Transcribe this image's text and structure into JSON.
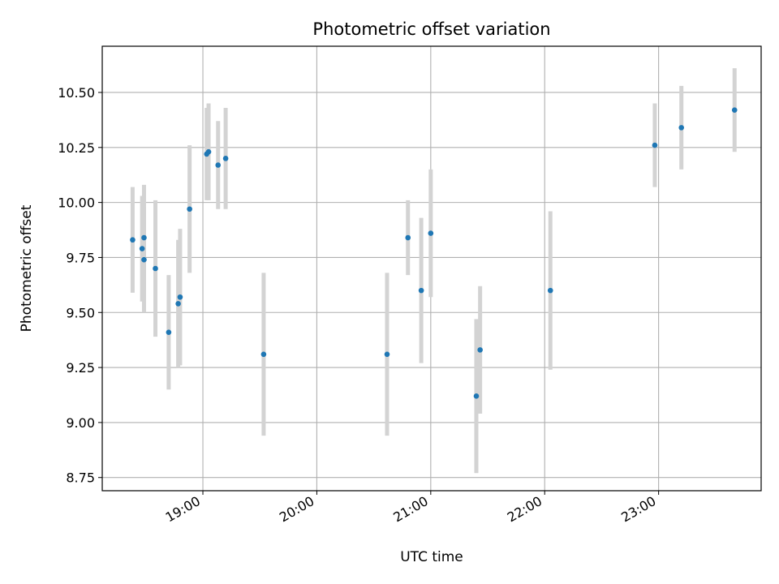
{
  "chart_data": {
    "type": "scatter",
    "title": "Photometric offset variation",
    "xlabel": "UTC time",
    "ylabel": "Photometric offset",
    "x_axis_type": "time",
    "xlim": [
      "18:07",
      "23:54"
    ],
    "ylim": [
      8.69,
      10.71
    ],
    "x_ticks": [
      "19:00",
      "20:00",
      "21:00",
      "22:00",
      "23:00"
    ],
    "y_ticks": [
      8.75,
      9.0,
      9.25,
      9.5,
      9.75,
      10.0,
      10.25,
      10.5
    ],
    "grid": true,
    "legend": "none",
    "point_color": "#1f77b4",
    "errorbar_color": "#d3d3d3",
    "points": [
      {
        "t": "18:23",
        "y": 9.83,
        "err": 0.24
      },
      {
        "t": "18:28",
        "y": 9.79,
        "err": 0.24
      },
      {
        "t": "18:29",
        "y": 9.74,
        "err": 0.24
      },
      {
        "t": "18:29",
        "y": 9.84,
        "err": 0.24
      },
      {
        "t": "18:35",
        "y": 9.7,
        "err": 0.31
      },
      {
        "t": "18:42",
        "y": 9.41,
        "err": 0.26
      },
      {
        "t": "18:47",
        "y": 9.54,
        "err": 0.29
      },
      {
        "t": "18:48",
        "y": 9.57,
        "err": 0.31
      },
      {
        "t": "18:53",
        "y": 9.97,
        "err": 0.29
      },
      {
        "t": "19:02",
        "y": 10.22,
        "err": 0.21
      },
      {
        "t": "19:03",
        "y": 10.23,
        "err": 0.22
      },
      {
        "t": "19:08",
        "y": 10.17,
        "err": 0.2
      },
      {
        "t": "19:12",
        "y": 10.2,
        "err": 0.23
      },
      {
        "t": "19:32",
        "y": 9.31,
        "err": 0.37
      },
      {
        "t": "20:37",
        "y": 9.31,
        "err": 0.37
      },
      {
        "t": "20:48",
        "y": 9.84,
        "err": 0.17
      },
      {
        "t": "20:55",
        "y": 9.6,
        "err": 0.33
      },
      {
        "t": "21:00",
        "y": 9.86,
        "err": 0.29
      },
      {
        "t": "21:24",
        "y": 9.12,
        "err": 0.35
      },
      {
        "t": "21:26",
        "y": 9.33,
        "err": 0.29
      },
      {
        "t": "22:03",
        "y": 9.6,
        "err": 0.36
      },
      {
        "t": "22:58",
        "y": 10.26,
        "err": 0.19
      },
      {
        "t": "23:12",
        "y": 10.34,
        "err": 0.19
      },
      {
        "t": "23:40",
        "y": 10.42,
        "err": 0.19
      }
    ]
  }
}
